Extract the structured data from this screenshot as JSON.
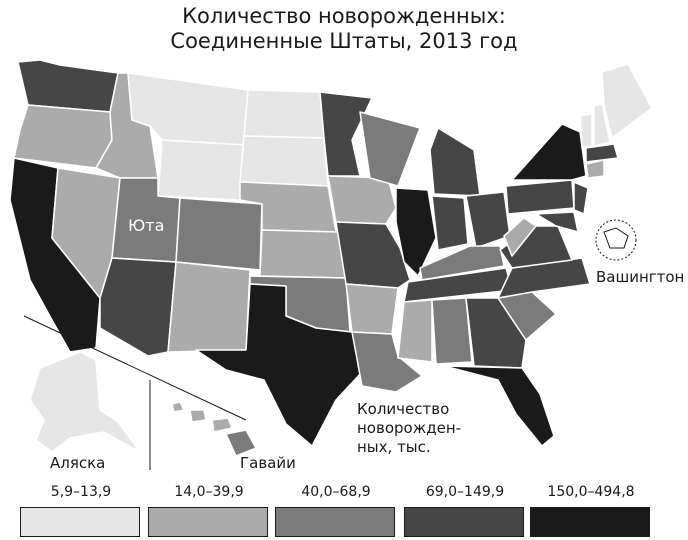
{
  "title": {
    "line1": "Количество новорожденных:",
    "line2": "Соединенные Штаты, 2013 год"
  },
  "labels": {
    "utah": "Юта",
    "washington": "Вашингтон",
    "alaska": "Аляска",
    "hawaii": "Гавайи",
    "unit_line1": "Количество",
    "unit_line2": "новорожден-",
    "unit_line3": "ных, тыс."
  },
  "legend": [
    {
      "range": "5,9–13,9",
      "color": "#e6e6e6"
    },
    {
      "range": "14,0–39,9",
      "color": "#ababab"
    },
    {
      "range": "40,0–68,9",
      "color": "#7b7b7b"
    },
    {
      "range": "69,0–149,9",
      "color": "#464646"
    },
    {
      "range": "150,0–494,8",
      "color": "#1a1a1a"
    }
  ],
  "class_colors": [
    "#e6e6e6",
    "#ababab",
    "#7b7b7b",
    "#464646",
    "#1a1a1a"
  ],
  "states_by_class": {
    "5,9–13,9": [
      "Montana",
      "Wyoming",
      "North Dakota",
      "South Dakota",
      "Maine",
      "Vermont",
      "New Hampshire",
      "Alaska"
    ],
    "14,0–39,9": [
      "Idaho",
      "Nevada",
      "New Mexico",
      "Oregon",
      "Nebraska",
      "Kansas",
      "Iowa",
      "Arkansas",
      "Mississippi",
      "West Virginia",
      "Hawaii",
      "Connecticut"
    ],
    "40,0–68,9": [
      "Utah",
      "Colorado",
      "Oklahoma",
      "Louisiana",
      "Alabama",
      "Kentucky",
      "South Carolina",
      "Wisconsin"
    ],
    "69,0–149,9": [
      "Washington",
      "Arizona",
      "Minnesota",
      "Missouri",
      "Michigan",
      "Indiana",
      "Ohio",
      "Tennessee",
      "Georgia",
      "North Carolina",
      "Virginia",
      "Pennsylvania",
      "New Jersey",
      "Maryland",
      "Massachusetts"
    ],
    "150,0–494,8": [
      "California",
      "Texas",
      "Illinois",
      "New York",
      "Florida"
    ]
  }
}
